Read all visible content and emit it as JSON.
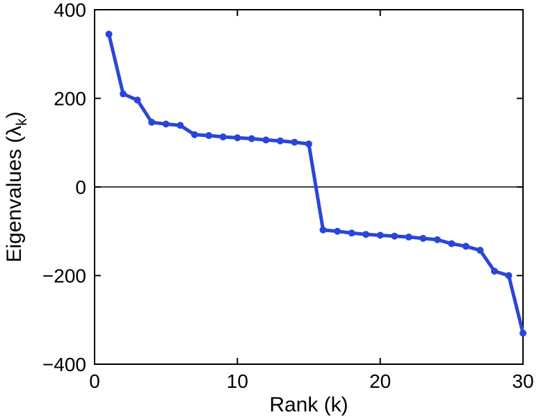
{
  "chart_data": {
    "type": "line",
    "title": "",
    "xlabel": "Rank (k)",
    "ylabel": "Eigenvalues (λ_k)",
    "ylabel_parts": {
      "prefix": "Eigenvalues (λ",
      "sub": "k",
      "suffix": ")"
    },
    "x": [
      1,
      2,
      3,
      4,
      5,
      6,
      7,
      8,
      9,
      10,
      11,
      12,
      13,
      14,
      15,
      16,
      17,
      18,
      19,
      20,
      21,
      22,
      23,
      24,
      25,
      26,
      27,
      28,
      29,
      30
    ],
    "values": [
      345,
      210,
      196,
      146,
      142,
      139,
      118,
      116,
      113,
      111,
      109,
      106,
      104,
      101,
      97,
      -97,
      -100,
      -104,
      -107,
      -109,
      -111,
      -113,
      -116,
      -119,
      -128,
      -134,
      -143,
      -190,
      -200,
      -330
    ],
    "xlim": [
      0,
      30
    ],
    "ylim": [
      -400,
      400
    ],
    "xticks": [
      0,
      10,
      20,
      30
    ],
    "yticks": [
      -400,
      -200,
      0,
      200,
      400
    ],
    "xtick_labels": [
      "0",
      "10",
      "20",
      "30"
    ],
    "ytick_labels": [
      "−400",
      "−200",
      "0",
      "200",
      "400"
    ],
    "grid": false,
    "zero_line": true,
    "legend": null,
    "line_color": "#2A46D8",
    "marker": "circle",
    "axis_color": "#000000",
    "background_color": "#FFFFFF"
  }
}
